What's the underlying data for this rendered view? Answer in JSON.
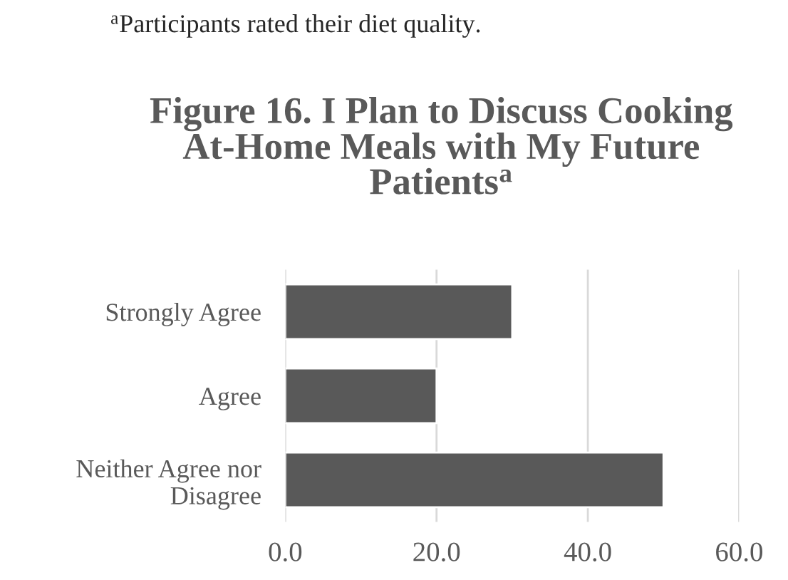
{
  "chart_data": {
    "type": "bar",
    "orientation": "horizontal",
    "title": "Figure 16. I Plan to Discuss Cooking\nAt-Home Meals with My Future\nPatients$^{a}$",
    "annotations": [
      "$^{a}$Participants rated their diet quality."
    ],
    "categories": [
      "Strongly Agree",
      "Agree",
      "Neither Agree nor\nDisagree"
    ],
    "values": [
      30,
      20,
      50
    ],
    "color": "#595959",
    "xlim": [
      0,
      60
    ],
    "xticks": [
      {
        "value": 0,
        "label": "0.0"
      },
      {
        "value": 20,
        "label": "20.0"
      },
      {
        "value": 40,
        "label": "40.0"
      },
      {
        "value": 60,
        "label": "60.0"
      }
    ],
    "grid": "x",
    "legend": false
  }
}
